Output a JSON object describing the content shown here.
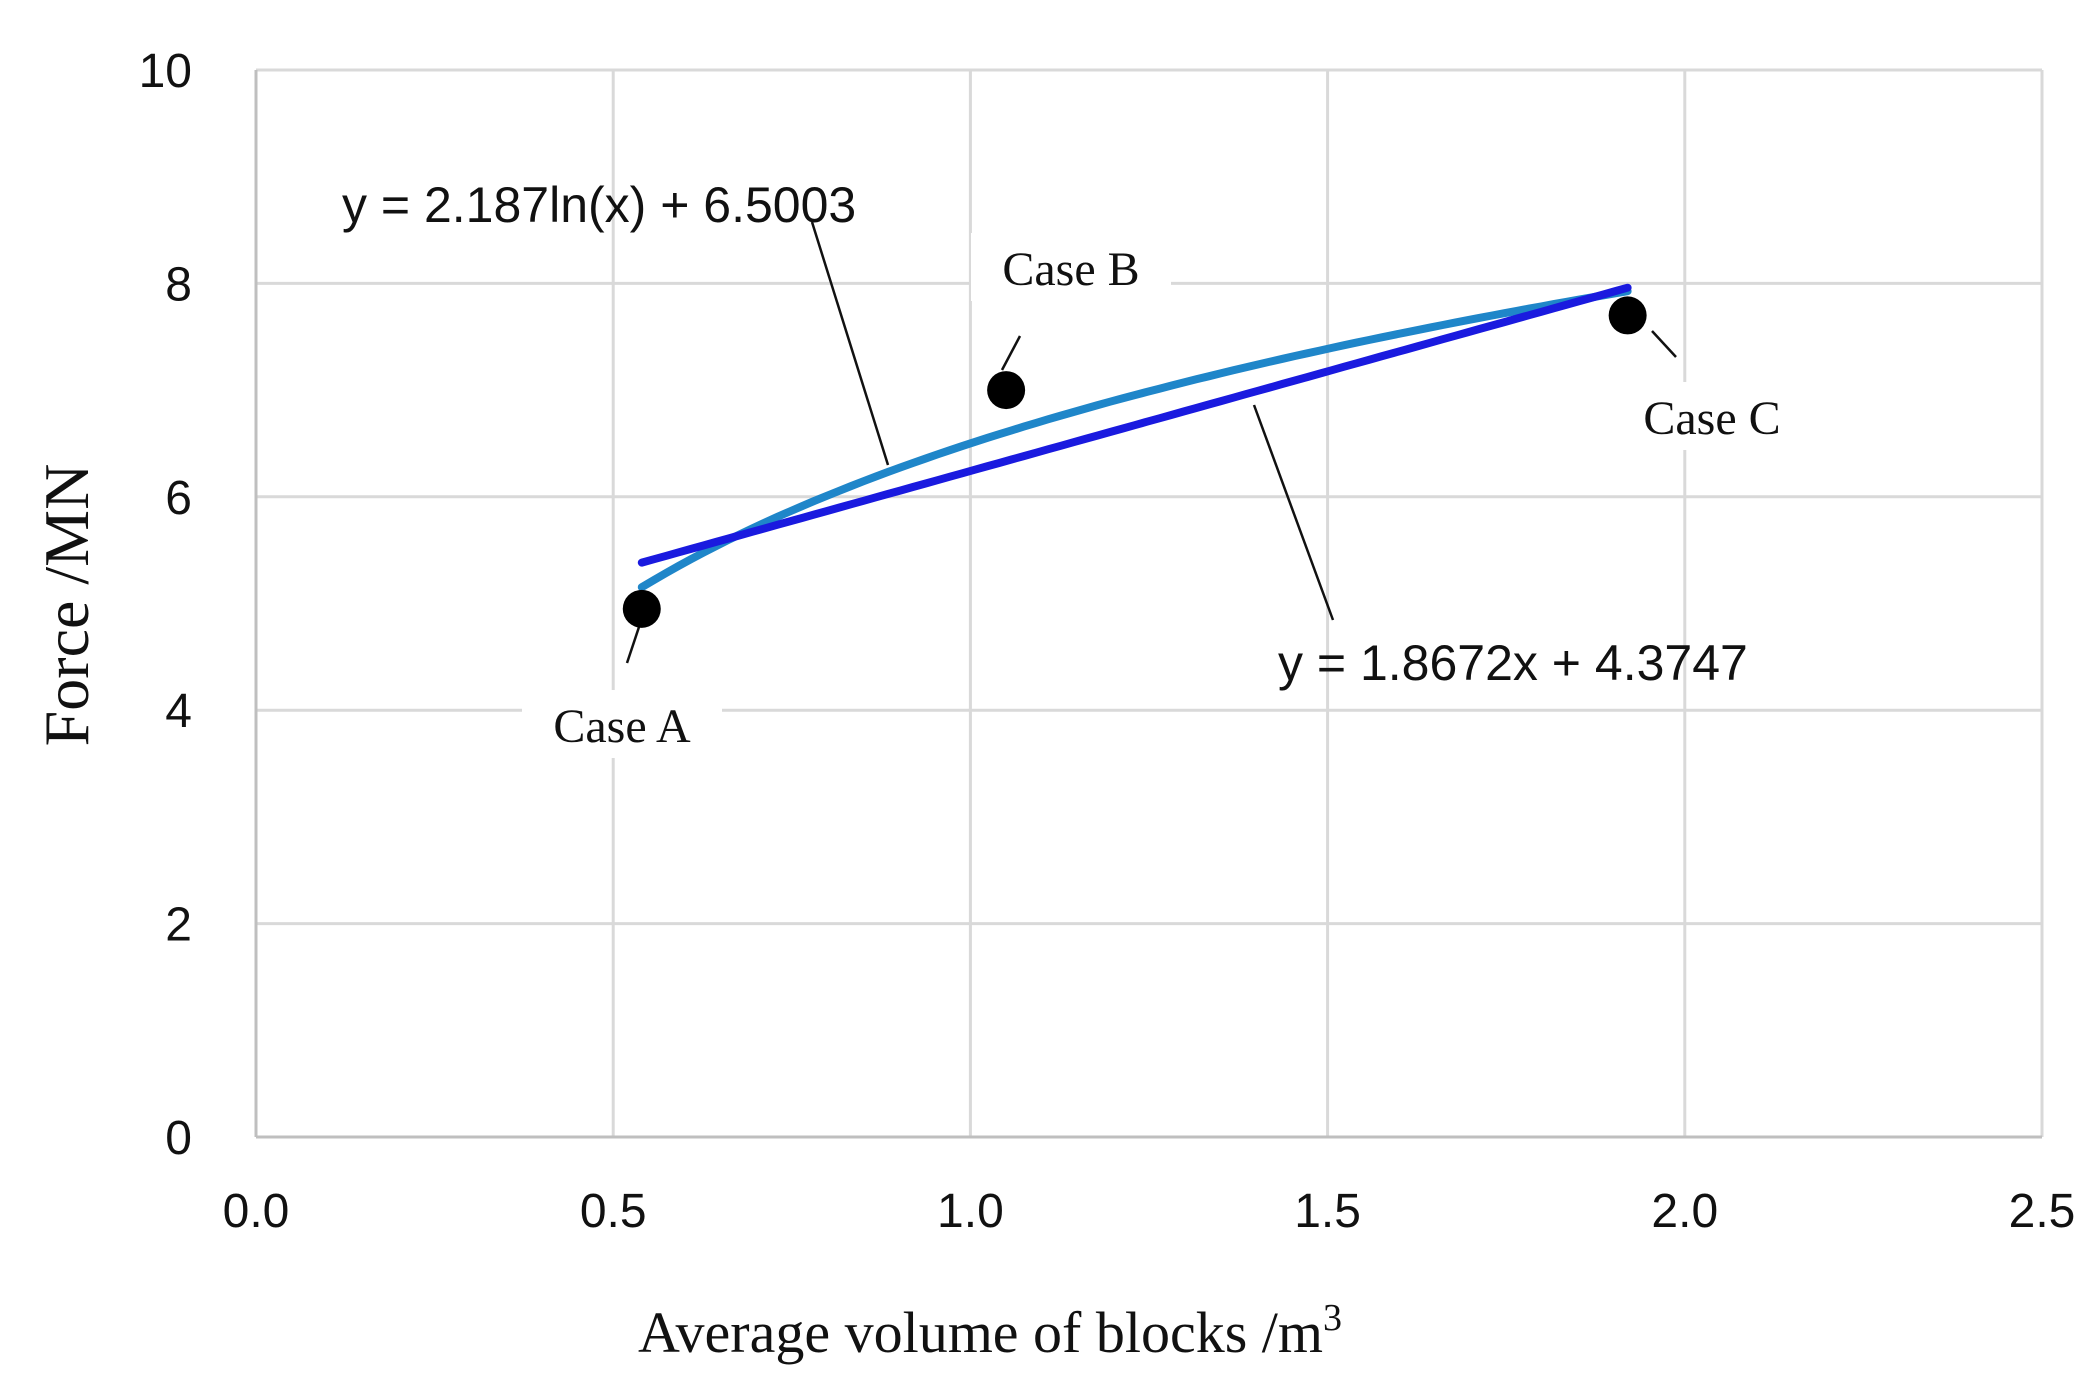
{
  "chart_data": {
    "type": "scatter",
    "title": "",
    "xlabel": "Average volume of blocks  /m",
    "xlabel_superscript": "3",
    "ylabel": "Force  /MN",
    "xlim": [
      0.0,
      2.5
    ],
    "ylim": [
      0,
      10
    ],
    "x_ticks": [
      0.0,
      0.5,
      1.0,
      1.5,
      2.0,
      2.5
    ],
    "x_tick_labels": [
      "0.0",
      "0.5",
      "1.0",
      "1.5",
      "2.0",
      "2.5"
    ],
    "y_ticks": [
      0,
      2,
      4,
      6,
      8,
      10
    ],
    "y_tick_labels": [
      "0",
      "2",
      "4",
      "6",
      "8",
      "10"
    ],
    "grid": true,
    "legend": "none",
    "points": [
      {
        "label": "Case A",
        "x": 0.54,
        "y": 4.95
      },
      {
        "label": "Case B",
        "x": 1.05,
        "y": 7.0
      },
      {
        "label": "Case C",
        "x": 1.92,
        "y": 7.7
      }
    ],
    "trendlines": [
      {
        "kind": "log",
        "equation": "y = 2.187ln(x) + 6.5003",
        "a": 2.187,
        "b": 6.5003,
        "x_range": [
          0.54,
          1.92
        ],
        "color": "#1f86c9"
      },
      {
        "kind": "linear",
        "equation": "y = 1.8672x + 4.3747",
        "slope": 1.8672,
        "intercept": 4.3747,
        "x_range": [
          0.54,
          1.92
        ],
        "color": "#1a1adf"
      }
    ],
    "colors": {
      "point": "#000000",
      "grid": "#d9d9d9",
      "axis": "#bfbfbf"
    }
  }
}
